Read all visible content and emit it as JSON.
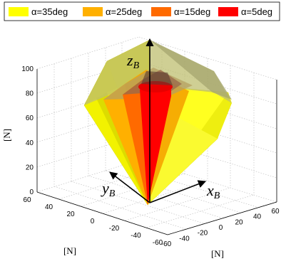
{
  "chart_data": {
    "type": "3d-surface",
    "title": "",
    "legend": {
      "placement": "top",
      "entries": [
        {
          "label": "α=35deg",
          "color": "#ffff00"
        },
        {
          "label": "α=25deg",
          "color": "#ffb000"
        },
        {
          "label": "α=15deg",
          "color": "#ff6a00"
        },
        {
          "label": "α=5deg",
          "color": "#ff0000"
        }
      ]
    },
    "x_axis": {
      "unit_label": "[N]",
      "ticks": [
        "-60",
        "-40",
        "-20",
        "0",
        "20",
        "40",
        "60"
      ],
      "range": [
        -60,
        60
      ]
    },
    "y_axis": {
      "unit_label": "[N]",
      "ticks": [
        "-60",
        "-40",
        "-20",
        "0",
        "20",
        "40",
        "60"
      ],
      "range": [
        -60,
        60
      ]
    },
    "z_axis": {
      "unit_label": "[N]",
      "ticks": [
        "0",
        "20",
        "40",
        "60",
        "80",
        "100"
      ],
      "range": [
        0,
        100
      ]
    },
    "frame_labels": {
      "x": "x",
      "x_sub": "B",
      "y": "y",
      "y_sub": "B",
      "z": "z",
      "z_sub": "B"
    },
    "grid": true,
    "surfaces": [
      {
        "alpha_deg": 35,
        "color": "#ffff00"
      },
      {
        "alpha_deg": 25,
        "color": "#ffb000"
      },
      {
        "alpha_deg": 15,
        "color": "#ff6a00"
      },
      {
        "alpha_deg": 5,
        "color": "#ff0000"
      }
    ]
  }
}
